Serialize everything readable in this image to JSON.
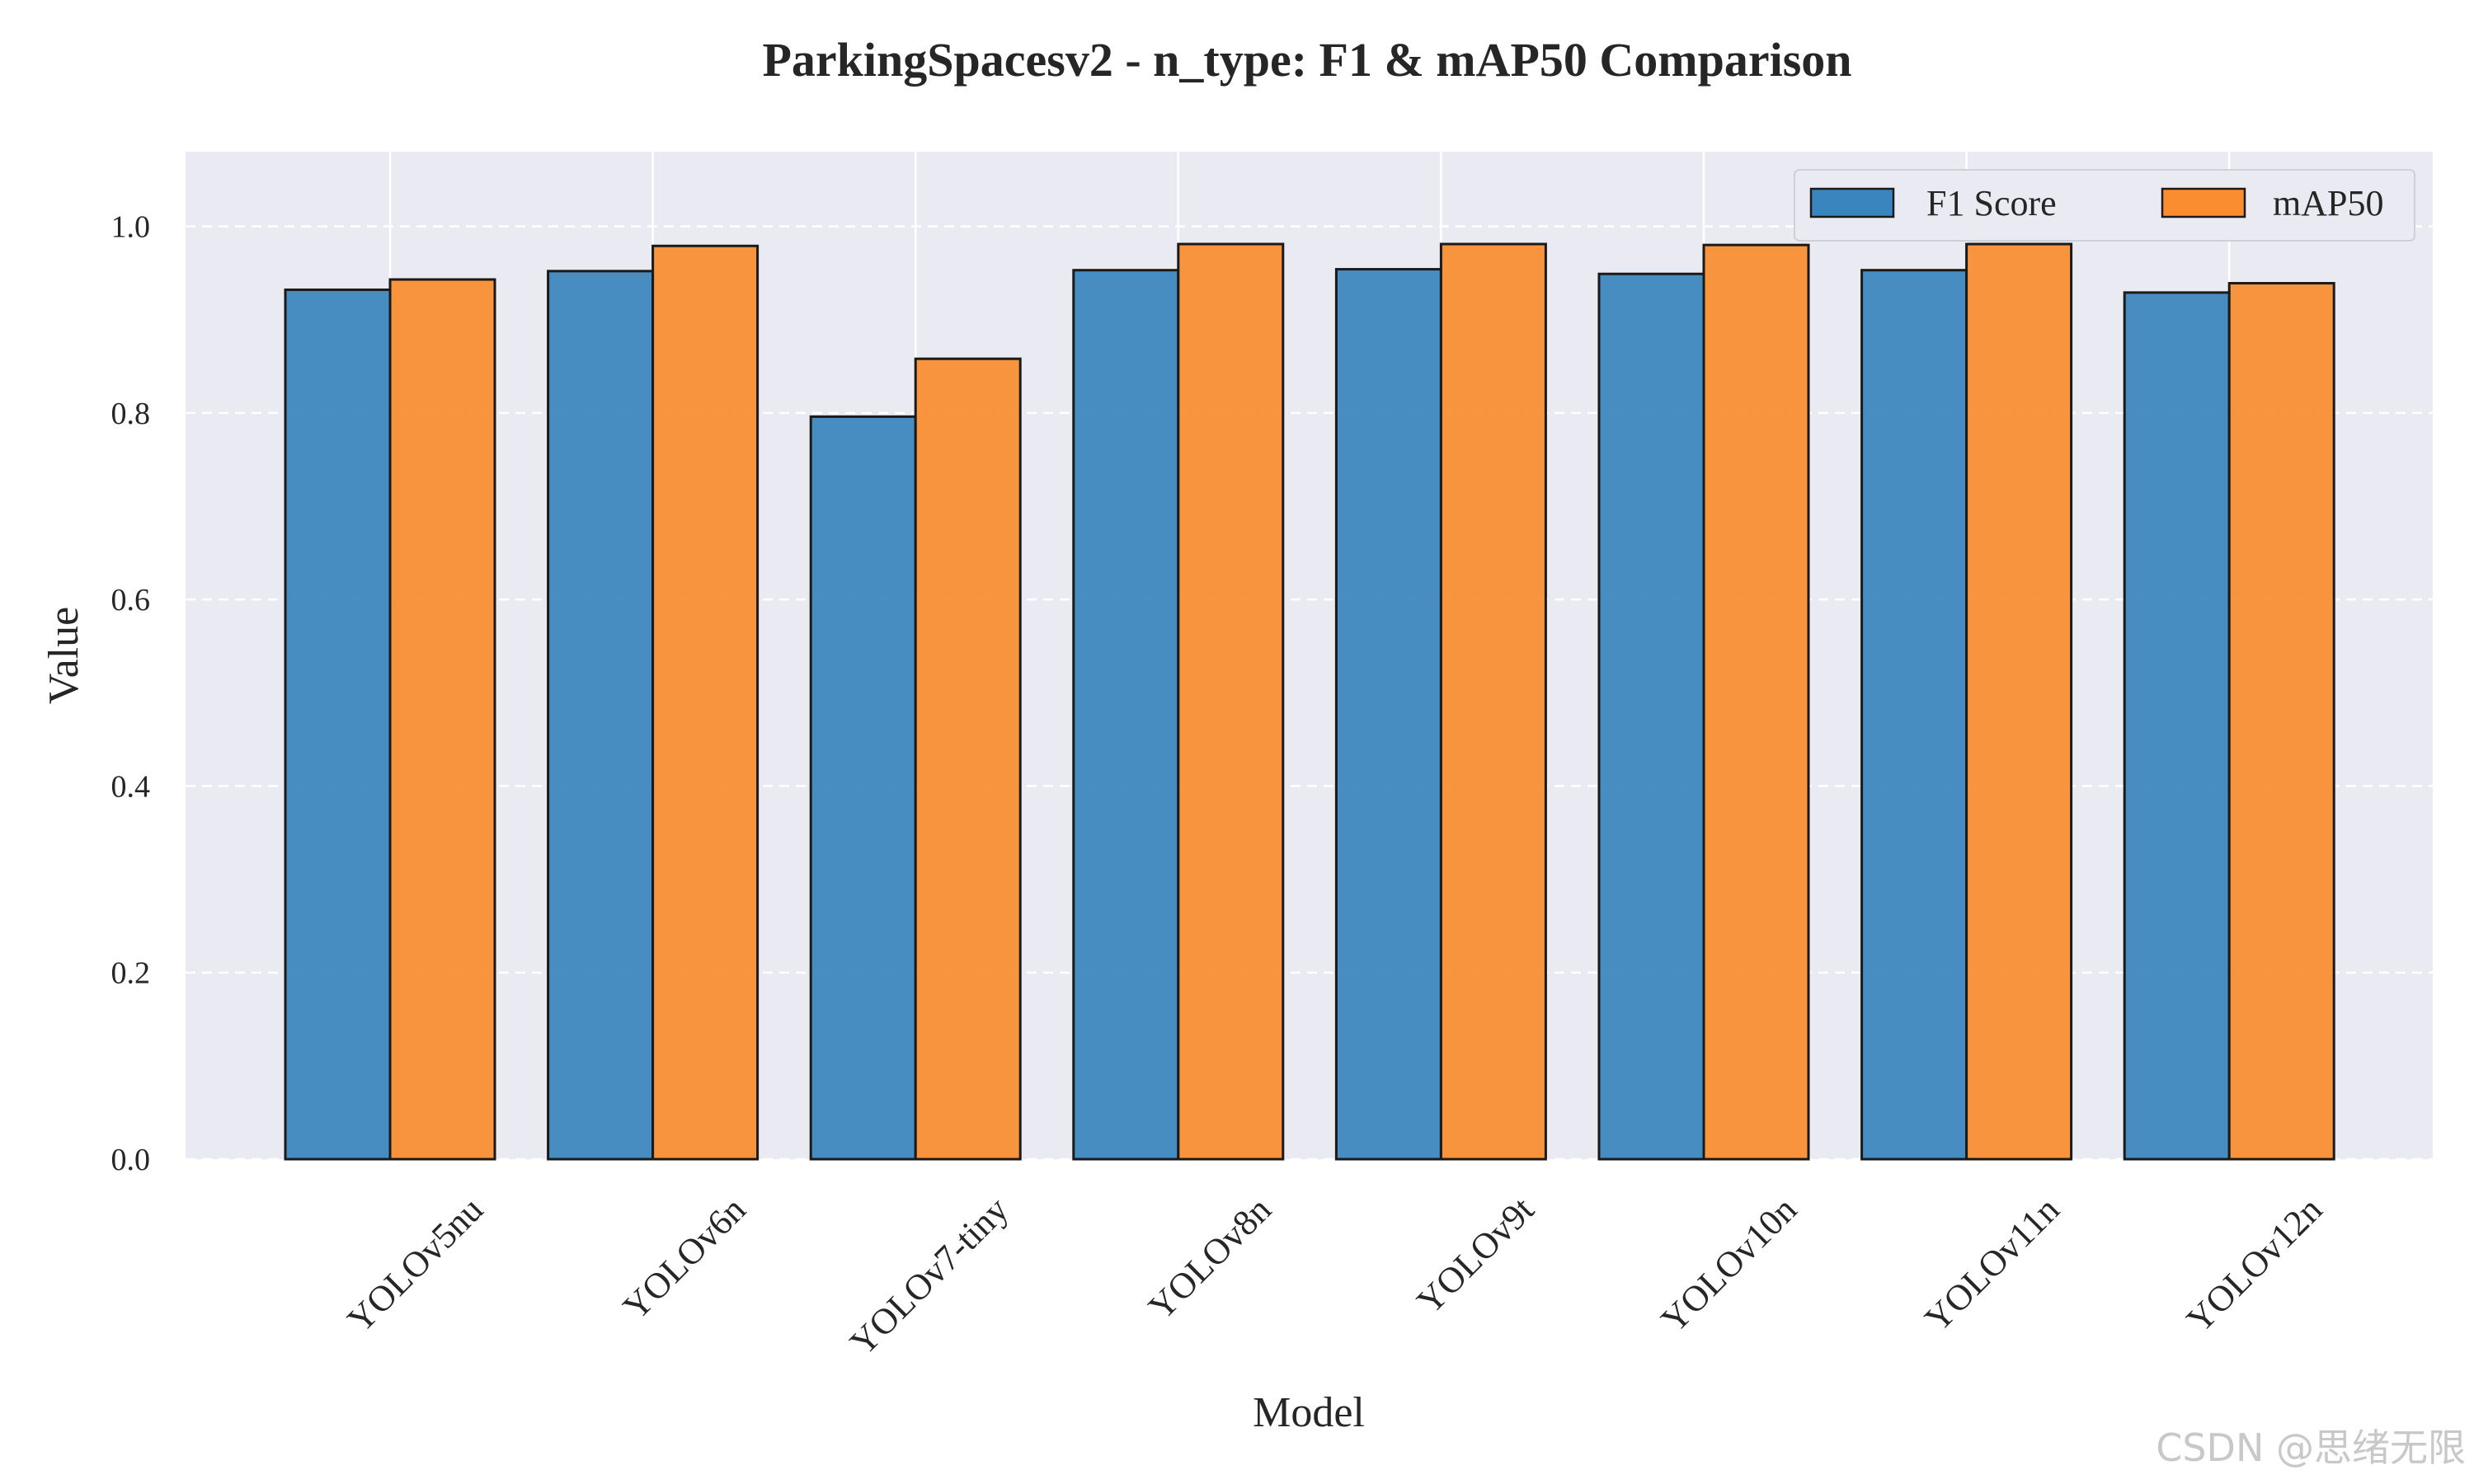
{
  "watermark": "CSDN @思绪无限",
  "chart_data": {
    "type": "bar",
    "title": "ParkingSpacesv2 - n_type: F1 & mAP50 Comparison",
    "xlabel": "Model",
    "ylabel": "Value",
    "categories": [
      "YOLOv5nu",
      "YOLOv6n",
      "YOLOv7-tiny",
      "YOLOv8n",
      "YOLOv9t",
      "YOLOv10n",
      "YOLOv11n",
      "YOLOv12n"
    ],
    "series": [
      {
        "name": "F1 Score",
        "color": "#3a85be",
        "values": [
          0.932,
          0.952,
          0.796,
          0.953,
          0.954,
          0.949,
          0.953,
          0.929
        ]
      },
      {
        "name": "mAP50",
        "color": "#f98d2f",
        "values": [
          0.943,
          0.979,
          0.858,
          0.981,
          0.981,
          0.98,
          0.981,
          0.939
        ]
      }
    ],
    "ylim": [
      0,
      1.08
    ],
    "yticks": [
      "0.0",
      "0.2",
      "0.4",
      "0.6",
      "0.8",
      "1.0"
    ],
    "grid": true,
    "legend_position": "top-right",
    "colors": {
      "background": "#eaeaf2",
      "edge": "#1a1a1a",
      "grid_x": "#ffffff",
      "grid_y": "#ffffff"
    }
  }
}
